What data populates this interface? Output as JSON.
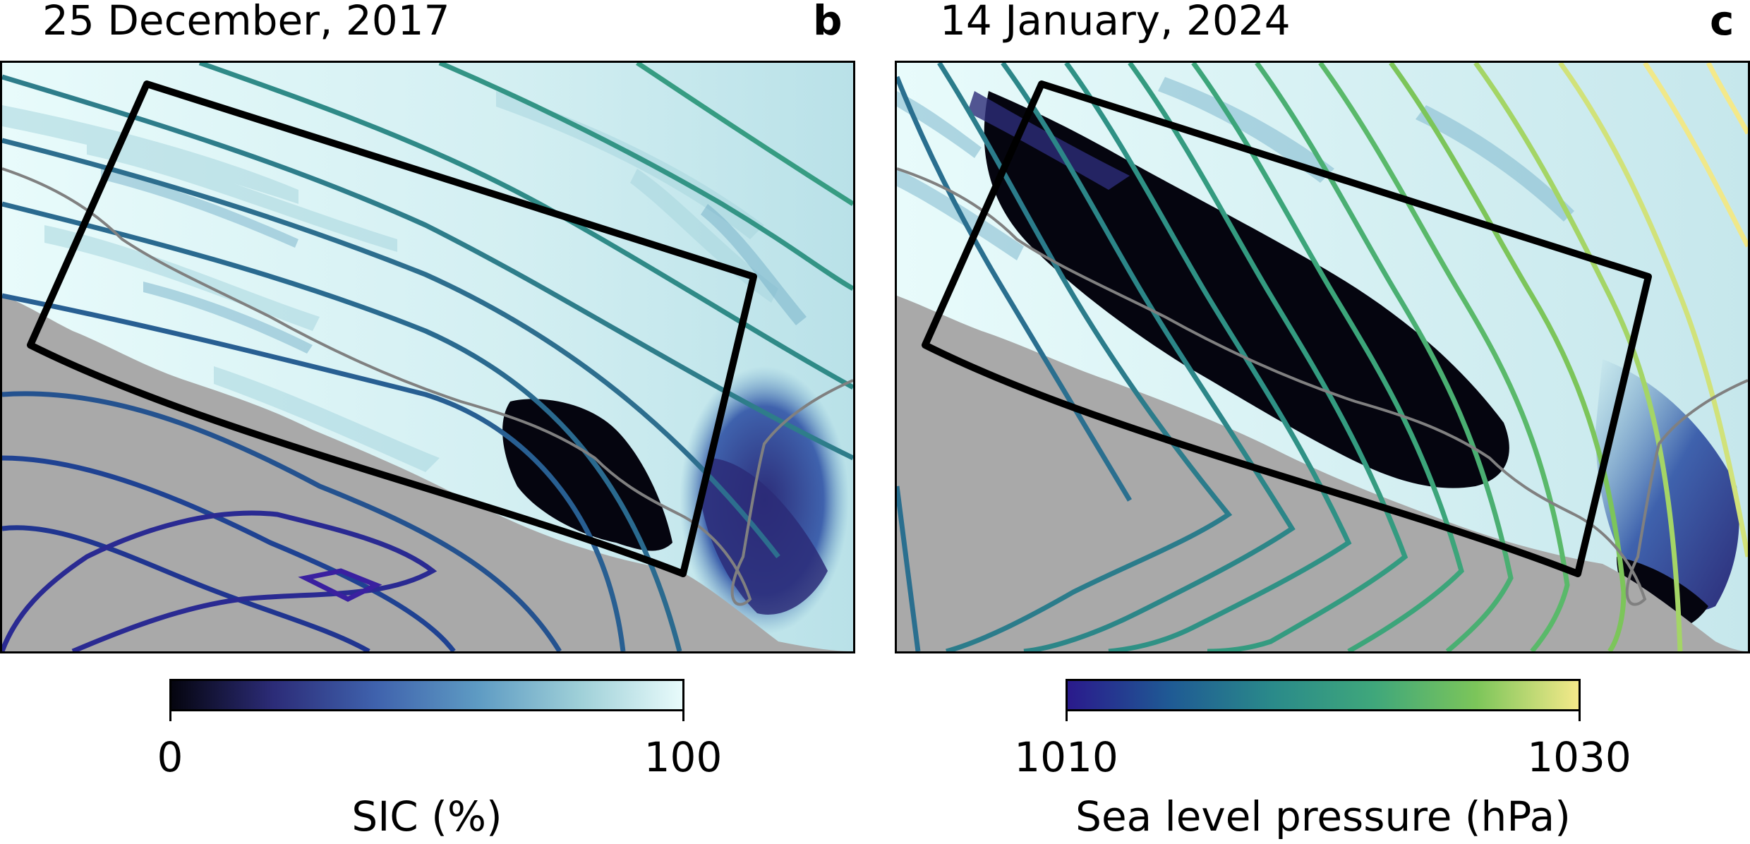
{
  "panels": [
    {
      "date": "25 December, 2017",
      "letter": "b"
    },
    {
      "date": "14 January, 2024",
      "letter": "c"
    }
  ],
  "colorbars": [
    {
      "label": "SIC (%)",
      "min_label": "0",
      "max_label": "100",
      "colormap": [
        "#05050f",
        "#2c2c78",
        "#3f62ad",
        "#5e9bc3",
        "#9fd0d8",
        "#e8fbfb"
      ]
    },
    {
      "label": "Sea level pressure (hPa)",
      "min_label": "1010",
      "max_label": "1030",
      "colormap": [
        "#2a1a8c",
        "#1f5a94",
        "#2a8a8a",
        "#3fa77b",
        "#7cc55a",
        "#f4e98a"
      ]
    }
  ],
  "colors": {
    "land": "#a9a9a9",
    "ice_high": "#e6f8f8",
    "ice_low": "#050510",
    "box": "#000000",
    "coastline": "#808080"
  }
}
